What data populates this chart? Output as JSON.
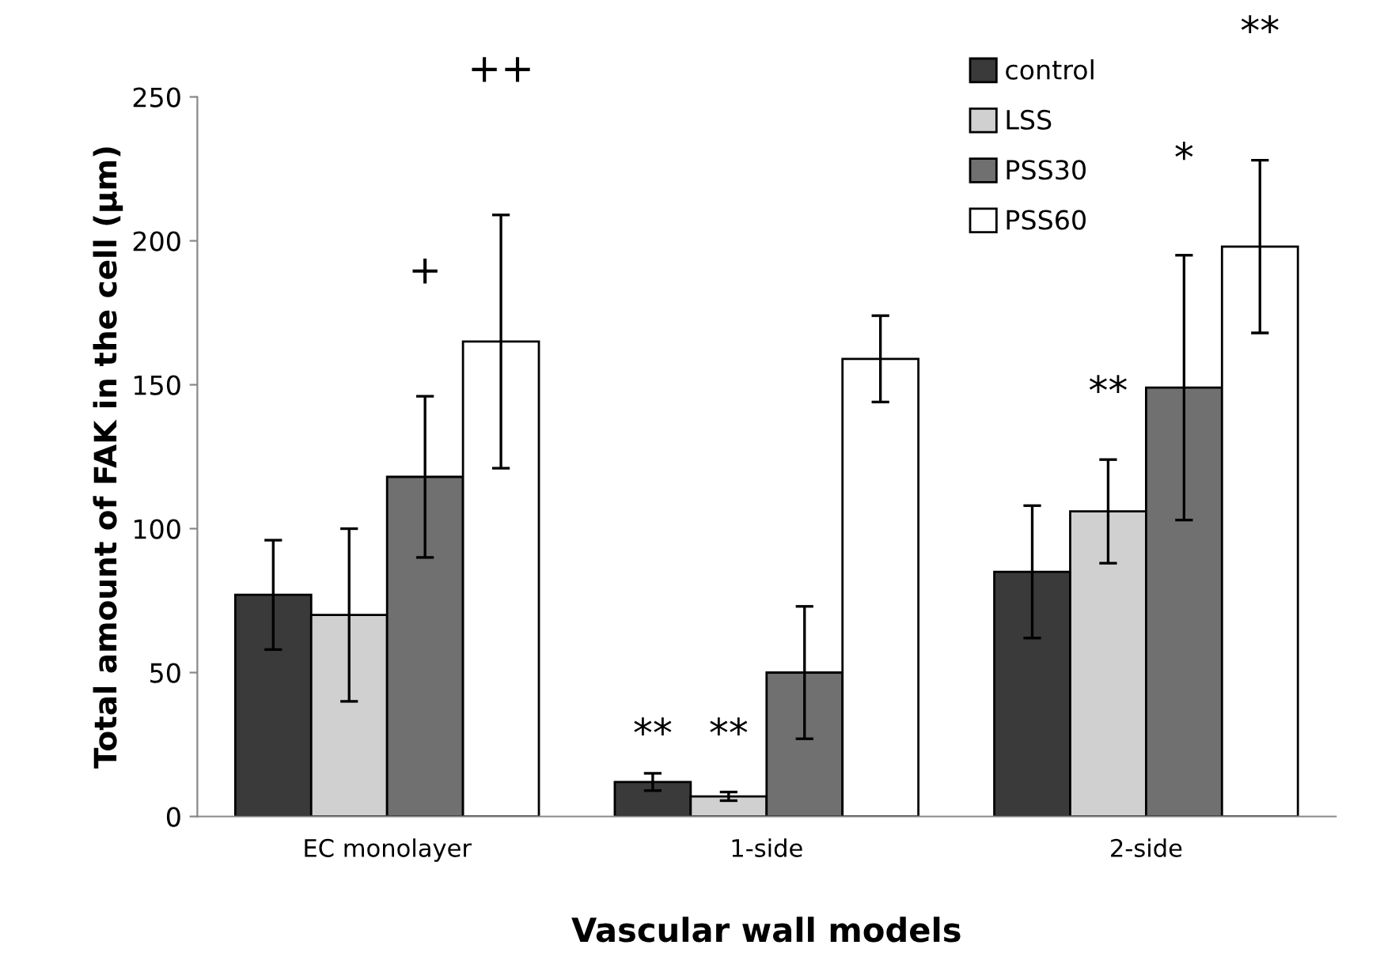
{
  "chart_data": {
    "type": "bar",
    "xlabel": "Vascular wall models",
    "ylabel": "Total amount of FAK in the cell (μm)",
    "categories": [
      "EC monolayer",
      "1-side",
      "2-side"
    ],
    "series": [
      {
        "name": "control",
        "color": "#3a3a3a",
        "values": [
          77,
          12,
          85
        ],
        "errors": [
          19,
          3,
          23
        ]
      },
      {
        "name": "LSS",
        "color": "#d0d0d0",
        "values": [
          70,
          7,
          106
        ],
        "errors": [
          30,
          1.5,
          18
        ]
      },
      {
        "name": "PSS30",
        "color": "#707070",
        "values": [
          118,
          50,
          149
        ],
        "errors": [
          28,
          23,
          46
        ]
      },
      {
        "name": "PSS60",
        "color": "#ffffff",
        "values": [
          165,
          159,
          198
        ],
        "errors": [
          44,
          15,
          30
        ]
      }
    ],
    "ylim": [
      0,
      250
    ],
    "yticks": [
      0,
      50,
      100,
      150,
      200,
      250
    ],
    "grid": false,
    "legend": "top right",
    "annotations": [
      "+",
      "++",
      "**",
      "**",
      "**",
      "*",
      "**"
    ]
  }
}
